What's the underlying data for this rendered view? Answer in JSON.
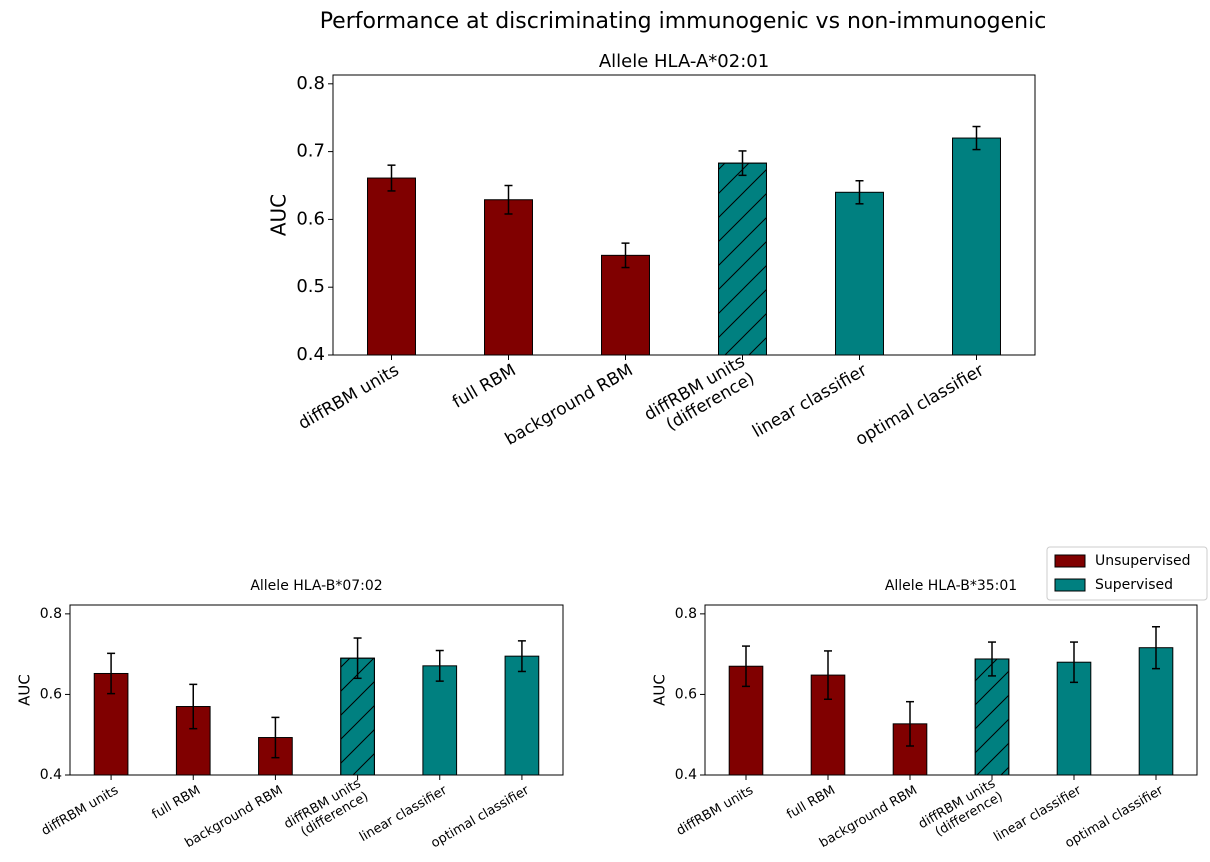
{
  "title": "Performance at discriminating immunogenic vs non-immunogenic",
  "chart_data": [
    {
      "type": "bar",
      "title": "Allele HLA-A*02:01",
      "ylabel": "AUC",
      "categories": [
        "diffRBM units",
        "full RBM",
        "background RBM",
        "diffRBM units\n(difference)",
        "linear classifier",
        "optimal classifier"
      ],
      "hatched": [
        false,
        false,
        false,
        true,
        false,
        false
      ],
      "series": [
        {
          "color": "#800000",
          "values": [
            0.661,
            0.629,
            0.547,
            null,
            null,
            null
          ],
          "errors": [
            0.019,
            0.021,
            0.018,
            null,
            null,
            null
          ]
        },
        {
          "color": "#008080",
          "values": [
            null,
            null,
            null,
            0.683,
            0.64,
            0.72
          ],
          "errors": [
            null,
            null,
            null,
            0.018,
            0.017,
            0.017
          ]
        }
      ],
      "ylim": [
        0.4,
        0.813
      ],
      "yticks": [
        0.4,
        0.5,
        0.6,
        0.7,
        0.8
      ],
      "legend": false
    },
    {
      "type": "bar",
      "title": "Allele HLA-B*07:02",
      "ylabel": "AUC",
      "categories": [
        "diffRBM units",
        "full RBM",
        "background RBM",
        "diffRBM units\n(difference)",
        "linear classifier",
        "optimal classifier"
      ],
      "hatched": [
        false,
        false,
        false,
        true,
        false,
        false
      ],
      "series": [
        {
          "color": "#800000",
          "values": [
            0.652,
            0.57,
            0.493,
            null,
            null,
            null
          ],
          "errors": [
            0.05,
            0.055,
            0.05,
            null,
            null,
            null
          ]
        },
        {
          "color": "#008080",
          "values": [
            null,
            null,
            null,
            0.69,
            0.671,
            0.695
          ],
          "errors": [
            null,
            null,
            null,
            0.05,
            0.038,
            0.038
          ]
        }
      ],
      "ylim": [
        0.4,
        0.822
      ],
      "yticks": [
        0.4,
        0.6,
        0.8
      ],
      "legend": false
    },
    {
      "type": "bar",
      "title": "Allele HLA-B*35:01",
      "ylabel": "AUC",
      "categories": [
        "diffRBM units",
        "full RBM",
        "background RBM",
        "diffRBM units\n(difference)",
        "linear classifier",
        "optimal classifier"
      ],
      "hatched": [
        false,
        false,
        false,
        true,
        false,
        false
      ],
      "series": [
        {
          "name": "Unsupervised",
          "color": "#800000",
          "values": [
            0.67,
            0.648,
            0.527,
            null,
            null,
            null
          ],
          "errors": [
            0.05,
            0.06,
            0.055,
            null,
            null,
            null
          ]
        },
        {
          "name": "Supervised",
          "color": "#008080",
          "values": [
            null,
            null,
            null,
            0.688,
            0.68,
            0.716
          ],
          "errors": [
            null,
            null,
            null,
            0.042,
            0.05,
            0.052
          ]
        }
      ],
      "ylim": [
        0.4,
        0.822
      ],
      "yticks": [
        0.4,
        0.6,
        0.8
      ],
      "legend": "upper right"
    }
  ]
}
